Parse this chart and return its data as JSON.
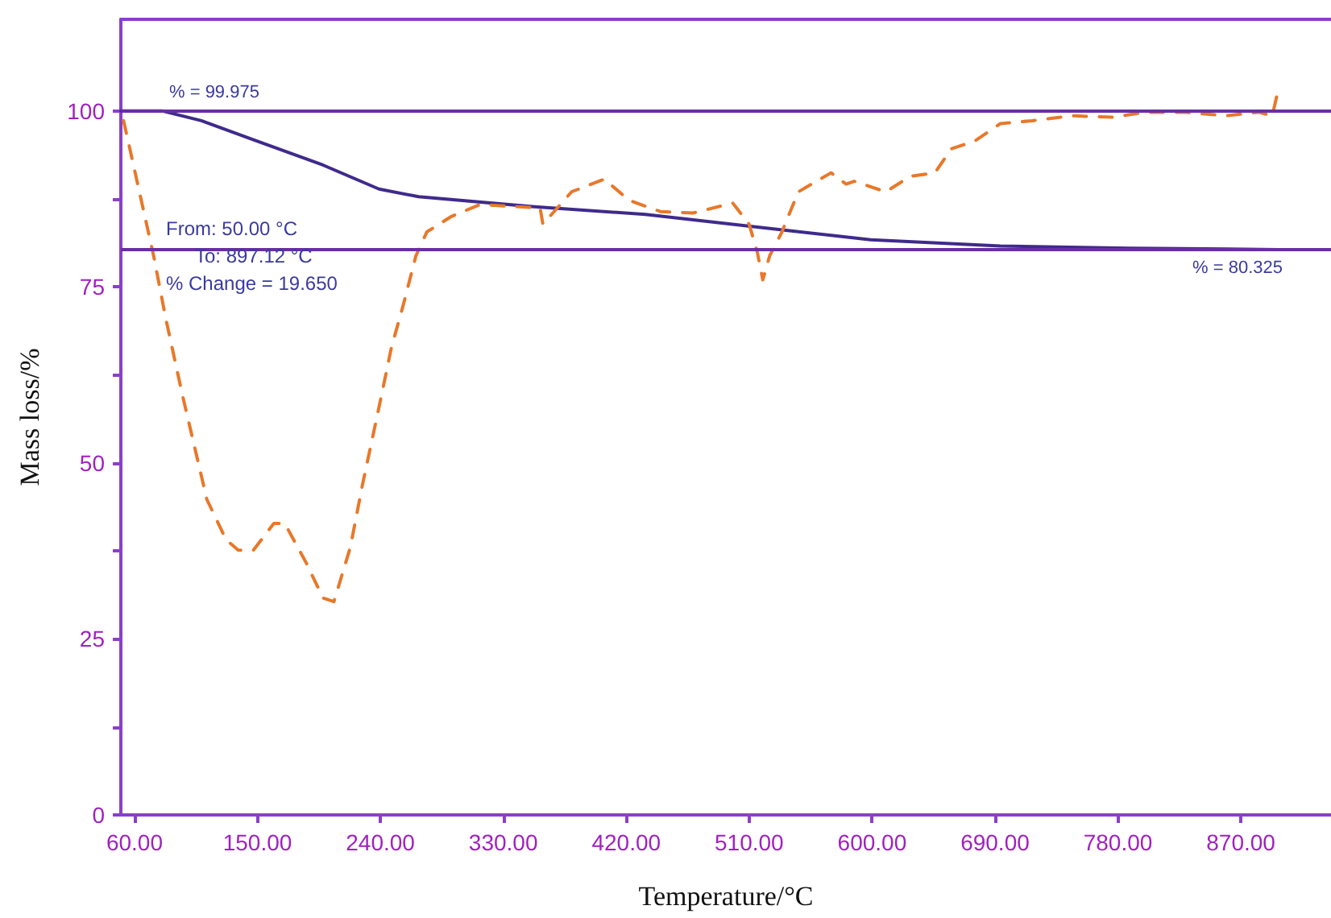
{
  "chart_data": {
    "type": "line",
    "xlabel": "Temperature/°C",
    "ylabel": "Mass loss/%",
    "xlim": [
      50,
      936
    ],
    "ylim": [
      0,
      113
    ],
    "xticks": [
      {
        "value": 60,
        "label": "60.00"
      },
      {
        "value": 150,
        "label": "150.00"
      },
      {
        "value": 240,
        "label": "240.00"
      },
      {
        "value": 330,
        "label": "330.00"
      },
      {
        "value": 420,
        "label": "420.00"
      },
      {
        "value": 510,
        "label": "510.00"
      },
      {
        "value": 600,
        "label": "600.00"
      },
      {
        "value": 690,
        "label": "690.00"
      },
      {
        "value": 780,
        "label": "780.00"
      },
      {
        "value": 870,
        "label": "870.00"
      }
    ],
    "yticks": [
      0,
      {
        "value": 12.5,
        "label": null
      },
      25,
      {
        "value": 37.5,
        "label": null
      },
      50,
      {
        "value": 62.5,
        "label": null
      },
      75,
      {
        "value": 87.5,
        "label": null
      },
      100
    ],
    "grid": false,
    "marker": "none",
    "series": [
      {
        "color": "#3f2a8c",
        "line_style": "solid",
        "x": [
          50,
          80,
          109,
          150,
          198,
          239,
          268,
          351,
          434,
          516,
          599,
          694,
          788,
          897.12
        ],
        "values": [
          100,
          100,
          98.6,
          95.7,
          92.3,
          88.9,
          87.8,
          86.4,
          85.3,
          83.5,
          81.7,
          80.8,
          80.5,
          80.3
        ]
      },
      {
        "color": "#e8782a",
        "line_style": "dashed",
        "x": [
          52,
          74,
          83,
          95,
          113,
          127,
          136,
          147,
          162,
          170,
          186,
          198,
          206,
          218,
          227,
          239,
          248,
          257,
          266,
          274,
          292,
          313,
          357,
          359,
          380,
          404,
          422,
          445,
          469,
          498,
          510,
          516,
          520,
          525,
          534,
          546,
          570,
          581,
          587,
          610,
          628,
          646,
          658,
          675,
          694,
          717,
          747,
          776,
          800,
          829,
          859,
          883,
          893,
          897
        ],
        "values": [
          98.6,
          79.4,
          70.4,
          59.7,
          44.8,
          39.1,
          37.6,
          37.6,
          41.4,
          41.4,
          35.7,
          30.8,
          30.3,
          38,
          47,
          57.9,
          66.3,
          72.6,
          79.4,
          82.8,
          85,
          86.7,
          86.2,
          83.9,
          88.5,
          90.3,
          87.3,
          85.7,
          85.5,
          86.9,
          83.9,
          79.9,
          76,
          79.4,
          82.8,
          88.5,
          91.2,
          89.6,
          90,
          88.5,
          90.7,
          91.2,
          94.6,
          95.7,
          98.2,
          98.6,
          99.3,
          99.1,
          99.8,
          99.8,
          99.3,
          99.8,
          99.3,
          102.7
        ]
      }
    ],
    "ref_lines": [
      {
        "axis": "y",
        "value": 99.975,
        "label": "% = 99.975",
        "color": "#6a2ea0"
      },
      {
        "axis": "y",
        "value": 80.325,
        "label": "% = 80.325",
        "color": "#6a2ea0"
      }
    ],
    "annotations": [
      "From: 50.00 °C",
      "To: 897.12 °C",
      "% Change = 19.650"
    ]
  }
}
